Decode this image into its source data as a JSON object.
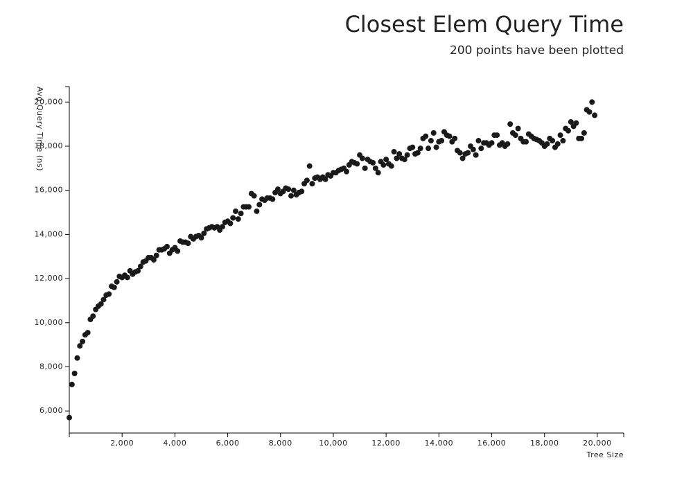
{
  "chart_data": {
    "type": "scatter",
    "title": "Closest Elem Query Time",
    "subtitle": "200 points have been plotted",
    "x_label": "Tree Size",
    "y_label": "Avg Query Time (ns)",
    "color": "#1a1a1a",
    "x": [
      0,
      100,
      200,
      300,
      400,
      500,
      600,
      700,
      800,
      900,
      1000,
      1100,
      1200,
      1300,
      1400,
      1500,
      1600,
      1700,
      1800,
      1900,
      2000,
      2100,
      2200,
      2300,
      2400,
      2500,
      2600,
      2700,
      2800,
      2900,
      3000,
      3100,
      3200,
      3300,
      3400,
      3500,
      3600,
      3700,
      3800,
      3900,
      4000,
      4100,
      4200,
      4300,
      4400,
      4500,
      4600,
      4700,
      4800,
      4900,
      5000,
      5100,
      5200,
      5300,
      5400,
      5500,
      5600,
      5700,
      5800,
      5900,
      6000,
      6100,
      6200,
      6300,
      6400,
      6500,
      6600,
      6700,
      6800,
      6900,
      7000,
      7100,
      7200,
      7300,
      7400,
      7500,
      7600,
      7700,
      7800,
      7900,
      8000,
      8100,
      8200,
      8300,
      8400,
      8500,
      8600,
      8700,
      8800,
      8900,
      9000,
      9100,
      9200,
      9300,
      9400,
      9500,
      9600,
      9700,
      9800,
      9900,
      10000,
      10100,
      10200,
      10300,
      10400,
      10500,
      10600,
      10700,
      10800,
      10900,
      11000,
      11100,
      11200,
      11300,
      11400,
      11500,
      11600,
      11700,
      11800,
      11900,
      12000,
      12100,
      12200,
      12300,
      12400,
      12500,
      12600,
      12700,
      12800,
      12900,
      13000,
      13100,
      13200,
      13300,
      13400,
      13500,
      13600,
      13700,
      13800,
      13900,
      14000,
      14100,
      14200,
      14300,
      14400,
      14500,
      14600,
      14700,
      14800,
      14900,
      15000,
      15100,
      15200,
      15300,
      15400,
      15500,
      15600,
      15700,
      15800,
      15900,
      16000,
      16100,
      16200,
      16300,
      16400,
      16500,
      16600,
      16700,
      16800,
      16900,
      17000,
      17100,
      17200,
      17300,
      17400,
      17500,
      17600,
      17700,
      17800,
      17900,
      18000,
      18100,
      18200,
      18300,
      18400,
      18500,
      18600,
      18700,
      18800,
      18900,
      19000,
      19100,
      19200,
      19300,
      19400,
      19500,
      19600,
      19700,
      19800,
      19900
    ],
    "values": [
      5700,
      7200,
      7700,
      8400,
      8950,
      9150,
      9450,
      9550,
      10150,
      10300,
      10600,
      10750,
      10850,
      11050,
      11250,
      11300,
      11650,
      11600,
      11850,
      12100,
      12050,
      12150,
      12050,
      12350,
      12200,
      12300,
      12350,
      12550,
      12750,
      12800,
      12950,
      12950,
      12850,
      13050,
      13300,
      13300,
      13350,
      13450,
      13150,
      13300,
      13400,
      13250,
      13700,
      13650,
      13650,
      13600,
      13900,
      13800,
      13900,
      13950,
      13850,
      14050,
      14250,
      14300,
      14350,
      14300,
      14350,
      14200,
      14350,
      14550,
      14600,
      14500,
      14750,
      15050,
      14700,
      14950,
      15250,
      15250,
      15250,
      15850,
      15750,
      15050,
      15350,
      15600,
      15550,
      15650,
      15650,
      15600,
      15900,
      16050,
      15850,
      15950,
      16100,
      16050,
      15750,
      16000,
      15800,
      15900,
      15950,
      16300,
      16450,
      17100,
      16300,
      16550,
      16600,
      16500,
      16600,
      16500,
      16700,
      16650,
      16800,
      16800,
      16900,
      16950,
      17000,
      16850,
      17150,
      17300,
      17250,
      17200,
      17600,
      17450,
      17000,
      17400,
      17300,
      17250,
      17000,
      16800,
      17300,
      17150,
      17400,
      17200,
      17100,
      17750,
      17450,
      17650,
      17450,
      17400,
      17600,
      17900,
      17950,
      17650,
      17700,
      17900,
      18350,
      18450,
      17900,
      18250,
      18600,
      17950,
      18200,
      18250,
      18650,
      18500,
      18450,
      18200,
      18350,
      17800,
      17700,
      17450,
      17650,
      17700,
      18000,
      17850,
      17600,
      18250,
      17900,
      18150,
      18150,
      18050,
      18150,
      18500,
      18500,
      18050,
      18150,
      18000,
      18100,
      19000,
      18600,
      18500,
      18800,
      18350,
      18200,
      18200,
      18550,
      18450,
      18350,
      18300,
      18250,
      18150,
      18000,
      18100,
      18350,
      18250,
      17950,
      18100,
      18500,
      18250,
      18800,
      18700,
      19100,
      18900,
      19050,
      18350,
      18350,
      18600,
      19650,
      19550,
      20000,
      19400
    ],
    "xlim": [
      0,
      21000
    ],
    "ylim": [
      5000,
      20700
    ],
    "xticks": [
      {
        "value": 2000,
        "label": "2,000"
      },
      {
        "value": 4000,
        "label": "4,000"
      },
      {
        "value": 6000,
        "label": "6,000"
      },
      {
        "value": 8000,
        "label": "8,000"
      },
      {
        "value": 10000,
        "label": "10,000"
      },
      {
        "value": 12000,
        "label": "12,000"
      },
      {
        "value": 14000,
        "label": "14,000"
      },
      {
        "value": 16000,
        "label": "16,000"
      },
      {
        "value": 18000,
        "label": "18,000"
      },
      {
        "value": 20000,
        "label": "20,000"
      }
    ],
    "yticks": [
      {
        "value": 6000,
        "label": "6,000"
      },
      {
        "value": 8000,
        "label": "8,000"
      },
      {
        "value": 10000,
        "label": "10,000"
      },
      {
        "value": 12000,
        "label": "12,000"
      },
      {
        "value": 14000,
        "label": "14,000"
      },
      {
        "value": 16000,
        "label": "16,000"
      },
      {
        "value": 18000,
        "label": "18,000"
      },
      {
        "value": 20000,
        "label": "20,000"
      }
    ]
  }
}
